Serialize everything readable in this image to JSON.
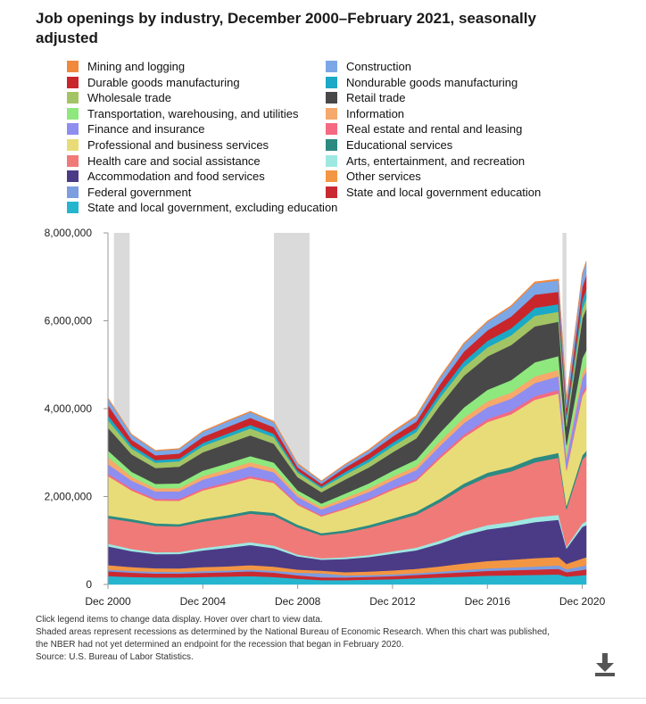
{
  "title": "Job openings by industry, December 2000–February 2021, seasonally adjusted",
  "legend": [
    {
      "label": "Mining and logging",
      "color": "#f0883e"
    },
    {
      "label": "Construction",
      "color": "#7ba7e6"
    },
    {
      "label": "Durable goods manufacturing",
      "color": "#c9262c"
    },
    {
      "label": "Nondurable goods manufacturing",
      "color": "#1ba9c7"
    },
    {
      "label": "Wholesale trade",
      "color": "#a3c465"
    },
    {
      "label": "Retail trade",
      "color": "#484848"
    },
    {
      "label": "Transportation, warehousing, and utilities",
      "color": "#8ee87e"
    },
    {
      "label": "Information",
      "color": "#f6a96b"
    },
    {
      "label": "Finance and insurance",
      "color": "#8e8ef0"
    },
    {
      "label": "Real estate and rental and leasing",
      "color": "#f36a82"
    },
    {
      "label": "Professional and business services",
      "color": "#e8dc78"
    },
    {
      "label": "Educational services",
      "color": "#2d8a82"
    },
    {
      "label": "Health care and social assistance",
      "color": "#f07a78"
    },
    {
      "label": "Arts, entertainment, and recreation",
      "color": "#9ee8e2"
    },
    {
      "label": "Accommodation and food services",
      "color": "#4b3b86"
    },
    {
      "label": "Other services",
      "color": "#f39643"
    },
    {
      "label": "Federal government",
      "color": "#7c9de0"
    },
    {
      "label": "State and local government education",
      "color": "#c92a32"
    },
    {
      "label": "State and local government, excluding education",
      "color": "#26b5cf"
    }
  ],
  "notes": [
    "Click legend items to change data display. Hover over chart to view data.",
    "Shaded areas represent recessions as determined by the National Bureau of Economic Research. When this chart was published,",
    "the NBER had not yet determined an endpoint for the recession that began in February 2020.",
    "Source: U.S. Bureau of Labor Statistics."
  ],
  "download_icon": "download-icon",
  "chart_data": {
    "type": "area",
    "stacked": true,
    "x": [
      "Dec 2000",
      "Dec 2001",
      "Dec 2002",
      "Dec 2003",
      "Dec 2004",
      "Dec 2005",
      "Dec 2006",
      "Dec 2007",
      "Dec 2008",
      "Dec 2009",
      "Dec 2010",
      "Dec 2011",
      "Dec 2012",
      "Dec 2013",
      "Dec 2014",
      "Dec 2015",
      "Dec 2016",
      "Dec 2017",
      "Dec 2018",
      "Dec 2019",
      "Apr 2020",
      "Dec 2020",
      "Feb 2021"
    ],
    "xticks": [
      "Dec 2000",
      "Dec 2004",
      "Dec 2008",
      "Dec 2012",
      "Dec 2016",
      "Dec 2020"
    ],
    "yticks": [
      "0",
      "2,000,000",
      "4,000,000",
      "6,000,000",
      "8,000,000"
    ],
    "ylim": [
      0,
      8000000
    ],
    "recessions": [
      [
        "Mar 2001",
        "Nov 2001"
      ],
      [
        "Dec 2007",
        "Jun 2009"
      ],
      [
        "Feb 2020",
        "Apr 2020"
      ]
    ],
    "series": [
      {
        "name": "State and local government, excluding education",
        "values": [
          190000,
          170000,
          160000,
          160000,
          170000,
          180000,
          190000,
          170000,
          130000,
          100000,
          100000,
          110000,
          120000,
          140000,
          160000,
          180000,
          200000,
          210000,
          220000,
          230000,
          180000,
          210000,
          220000
        ]
      },
      {
        "name": "State and local government education",
        "values": [
          110000,
          100000,
          90000,
          90000,
          95000,
          100000,
          110000,
          100000,
          80000,
          65000,
          60000,
          65000,
          70000,
          80000,
          90000,
          100000,
          110000,
          115000,
          120000,
          125000,
          100000,
          120000,
          125000
        ]
      },
      {
        "name": "Federal government",
        "values": [
          40000,
          38000,
          40000,
          35000,
          40000,
          38000,
          40000,
          42000,
          60000,
          90000,
          50000,
          40000,
          40000,
          38000,
          42000,
          50000,
          55000,
          60000,
          70000,
          80000,
          70000,
          90000,
          95000
        ]
      },
      {
        "name": "Other services",
        "values": [
          100000,
          90000,
          80000,
          80000,
          90000,
          95000,
          100000,
          95000,
          70000,
          60000,
          70000,
          80000,
          90000,
          100000,
          120000,
          150000,
          170000,
          180000,
          190000,
          190000,
          120000,
          170000,
          180000
        ]
      },
      {
        "name": "Accommodation and food services",
        "values": [
          430000,
          360000,
          320000,
          330000,
          380000,
          420000,
          460000,
          420000,
          300000,
          250000,
          300000,
          330000,
          380000,
          420000,
          520000,
          640000,
          720000,
          760000,
          820000,
          850000,
          350000,
          720000,
          730000
        ]
      },
      {
        "name": "Arts, entertainment, and recreation",
        "values": [
          60000,
          50000,
          45000,
          45000,
          55000,
          60000,
          62000,
          58000,
          40000,
          32000,
          40000,
          45000,
          55000,
          60000,
          70000,
          85000,
          95000,
          100000,
          110000,
          110000,
          40000,
          80000,
          85000
        ]
      },
      {
        "name": "Health care and social assistance",
        "values": [
          580000,
          620000,
          600000,
          580000,
          600000,
          620000,
          650000,
          680000,
          620000,
          520000,
          560000,
          620000,
          680000,
          750000,
          870000,
          1000000,
          1100000,
          1150000,
          1250000,
          1300000,
          850000,
          1450000,
          1500000
        ]
      },
      {
        "name": "Educational services",
        "values": [
          60000,
          60000,
          55000,
          55000,
          60000,
          60000,
          65000,
          65000,
          60000,
          50000,
          55000,
          60000,
          65000,
          70000,
          80000,
          90000,
          95000,
          100000,
          105000,
          110000,
          80000,
          100000,
          105000
        ]
      },
      {
        "name": "Professional and business services",
        "values": [
          900000,
          650000,
          520000,
          530000,
          650000,
          700000,
          740000,
          680000,
          450000,
          380000,
          480000,
          560000,
          650000,
          700000,
          920000,
          1050000,
          1150000,
          1200000,
          1320000,
          1350000,
          800000,
          1350000,
          1400000
        ]
      },
      {
        "name": "Real estate and rental and leasing",
        "values": [
          50000,
          45000,
          40000,
          40000,
          45000,
          48000,
          50000,
          45000,
          35000,
          30000,
          35000,
          38000,
          42000,
          45000,
          55000,
          65000,
          70000,
          75000,
          80000,
          85000,
          50000,
          80000,
          82000
        ]
      },
      {
        "name": "Finance and insurance",
        "values": [
          220000,
          180000,
          170000,
          175000,
          200000,
          210000,
          220000,
          200000,
          150000,
          130000,
          150000,
          160000,
          180000,
          200000,
          230000,
          260000,
          270000,
          280000,
          300000,
          310000,
          220000,
          320000,
          330000
        ]
      },
      {
        "name": "Information",
        "values": [
          160000,
          90000,
          70000,
          75000,
          85000,
          90000,
          95000,
          90000,
          60000,
          55000,
          70000,
          80000,
          85000,
          90000,
          110000,
          125000,
          135000,
          140000,
          150000,
          150000,
          90000,
          130000,
          135000
        ]
      },
      {
        "name": "Transportation, warehousing, and utilities",
        "values": [
          150000,
          110000,
          100000,
          105000,
          120000,
          130000,
          140000,
          130000,
          90000,
          80000,
          100000,
          115000,
          130000,
          150000,
          190000,
          230000,
          260000,
          280000,
          320000,
          310000,
          220000,
          330000,
          340000
        ]
      },
      {
        "name": "Retail trade",
        "values": [
          520000,
          400000,
          360000,
          380000,
          420000,
          450000,
          470000,
          430000,
          300000,
          260000,
          320000,
          360000,
          420000,
          480000,
          620000,
          720000,
          760000,
          800000,
          820000,
          780000,
          420000,
          900000,
          950000
        ]
      },
      {
        "name": "Wholesale trade",
        "values": [
          170000,
          130000,
          120000,
          125000,
          140000,
          150000,
          160000,
          150000,
          100000,
          90000,
          110000,
          125000,
          140000,
          150000,
          180000,
          200000,
          210000,
          220000,
          240000,
          230000,
          150000,
          220000,
          230000
        ]
      },
      {
        "name": "Nondurable goods manufacturing",
        "values": [
          110000,
          70000,
          60000,
          60000,
          70000,
          75000,
          80000,
          75000,
          45000,
          40000,
          60000,
          70000,
          80000,
          85000,
          110000,
          130000,
          145000,
          160000,
          180000,
          170000,
          110000,
          200000,
          210000
        ]
      },
      {
        "name": "Durable goods manufacturing",
        "values": [
          240000,
          130000,
          110000,
          115000,
          140000,
          150000,
          160000,
          150000,
          80000,
          60000,
          100000,
          120000,
          140000,
          150000,
          190000,
          220000,
          240000,
          270000,
          300000,
          280000,
          160000,
          300000,
          320000
        ]
      },
      {
        "name": "Construction",
        "values": [
          140000,
          110000,
          100000,
          100000,
          115000,
          125000,
          130000,
          110000,
          70000,
          55000,
          65000,
          75000,
          90000,
          110000,
          140000,
          170000,
          190000,
          220000,
          260000,
          260000,
          200000,
          290000,
          300000
        ]
      },
      {
        "name": "Mining and logging",
        "values": [
          15000,
          12000,
          12000,
          12000,
          15000,
          18000,
          20000,
          22000,
          15000,
          10000,
          15000,
          20000,
          25000,
          25000,
          30000,
          25000,
          20000,
          25000,
          30000,
          28000,
          15000,
          20000,
          22000
        ]
      }
    ]
  }
}
